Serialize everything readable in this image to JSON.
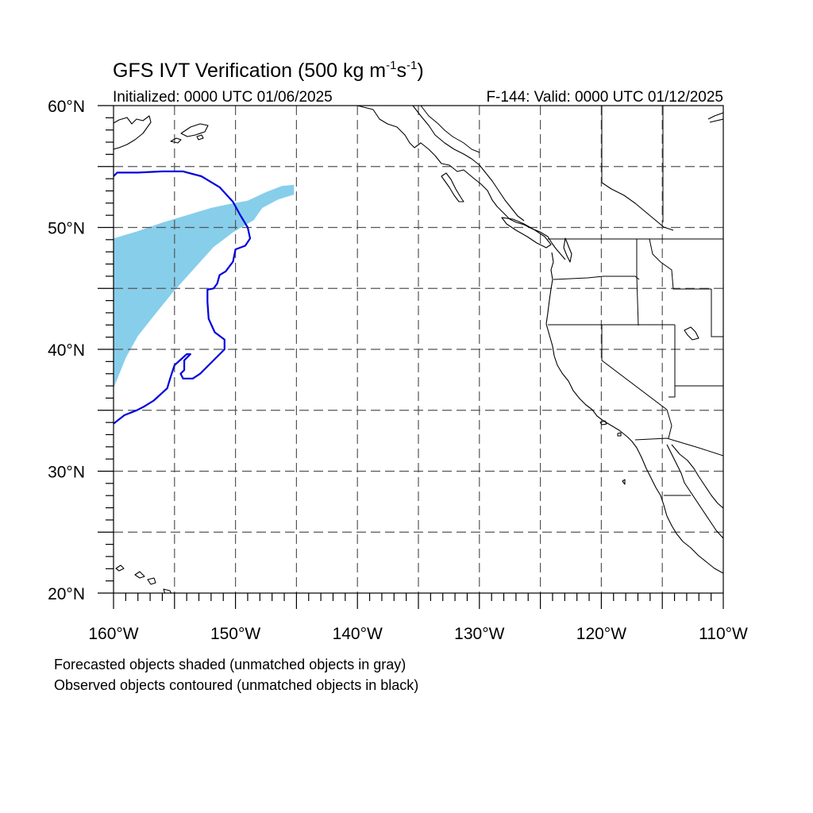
{
  "figure": {
    "title": "GFS IVT Verification (500 kg m",
    "title_exp1": "-1",
    "title_mid": "s",
    "title_exp2": "-1",
    "title_close": ")",
    "initialized": "Initialized: 0000 UTC 01/06/2025",
    "valid": "F-144: Valid: 0000 UTC 01/12/2025",
    "footnote_1": "Forecasted objects shaded (unmatched objects in gray)",
    "footnote_2": "Observed objects contoured (unmatched objects in black)"
  },
  "map": {
    "projection": "cylindrical equidistant",
    "lon_range": [
      -160,
      -110
    ],
    "lat_range": [
      20,
      60
    ],
    "lon_labels": [
      {
        "lon": -160,
        "text": "160°W"
      },
      {
        "lon": -150,
        "text": "150°W"
      },
      {
        "lon": -140,
        "text": "140°W"
      },
      {
        "lon": -130,
        "text": "130°W"
      },
      {
        "lon": -120,
        "text": "120°W"
      },
      {
        "lon": -110,
        "text": "110°W"
      }
    ],
    "lat_labels": [
      {
        "lat": 60,
        "text": "60°N"
      },
      {
        "lat": 50,
        "text": "50°N"
      },
      {
        "lat": 40,
        "text": "40°N"
      },
      {
        "lat": 30,
        "text": "30°N"
      },
      {
        "lat": 20,
        "text": "20°N"
      }
    ],
    "gridlines": "dashed, every 5°",
    "forecast_color": "#87CEEB",
    "observed_color": "#0000DD"
  },
  "objects": {
    "forecast_object": {
      "kind": "forecasted (matched)",
      "color": "#87CEEB",
      "polygon_lonlat": [
        [
          -160,
          49.1
        ],
        [
          -158,
          49.7
        ],
        [
          -156,
          50.4
        ],
        [
          -154,
          51.0
        ],
        [
          -152,
          51.6
        ],
        [
          -150.6,
          51.9
        ],
        [
          -149,
          52.2
        ],
        [
          -147.5,
          52.9
        ],
        [
          -146.2,
          53.4
        ],
        [
          -145.2,
          53.5
        ],
        [
          -145.2,
          52.7
        ],
        [
          -146.5,
          52.3
        ],
        [
          -147.8,
          51.6
        ],
        [
          -148.5,
          50.6
        ],
        [
          -150.2,
          49.6
        ],
        [
          -151.8,
          48.4
        ],
        [
          -153.5,
          46.5
        ],
        [
          -155.2,
          44.6
        ],
        [
          -156.5,
          43.0
        ],
        [
          -158,
          41.1
        ],
        [
          -159,
          39.3
        ],
        [
          -160,
          36.8
        ]
      ]
    },
    "observed_object": {
      "kind": "observed (matched)",
      "color": "#0000DD",
      "line_lonlat": [
        [
          -160,
          54.2
        ],
        [
          -159.7,
          54.5
        ],
        [
          -158,
          54.5
        ],
        [
          -156,
          54.6
        ],
        [
          -154.3,
          54.6
        ],
        [
          -152.8,
          54.2
        ],
        [
          -151.3,
          53.3
        ],
        [
          -150.2,
          52.1
        ],
        [
          -149.6,
          51.0
        ],
        [
          -149,
          50.0
        ],
        [
          -148.8,
          49.1
        ],
        [
          -149.2,
          48.5
        ],
        [
          -150,
          48.2
        ],
        [
          -150.2,
          47.2
        ],
        [
          -150.8,
          46.4
        ],
        [
          -151.3,
          46.1
        ],
        [
          -151.5,
          45.4
        ],
        [
          -151.8,
          45.0
        ],
        [
          -152.3,
          44.9
        ],
        [
          -152.3,
          43.9
        ],
        [
          -152.2,
          42.5
        ],
        [
          -151.7,
          41.4
        ],
        [
          -150.9,
          40.8
        ],
        [
          -150.9,
          40.0
        ],
        [
          -151.9,
          39.0
        ],
        [
          -152.9,
          38.0
        ],
        [
          -153.5,
          37.6
        ],
        [
          -154.3,
          37.6
        ],
        [
          -154.5,
          38.0
        ],
        [
          -154.2,
          38.3
        ],
        [
          -154.2,
          39.1
        ],
        [
          -153.7,
          39.6
        ],
        [
          -154.0,
          39.6
        ],
        [
          -155.0,
          38.7
        ],
        [
          -155.3,
          37.8
        ],
        [
          -155.6,
          36.8
        ],
        [
          -156.7,
          35.8
        ],
        [
          -157.5,
          35.3
        ],
        [
          -158.1,
          35.0
        ],
        [
          -159.1,
          34.6
        ],
        [
          -160,
          33.9
        ]
      ]
    }
  }
}
